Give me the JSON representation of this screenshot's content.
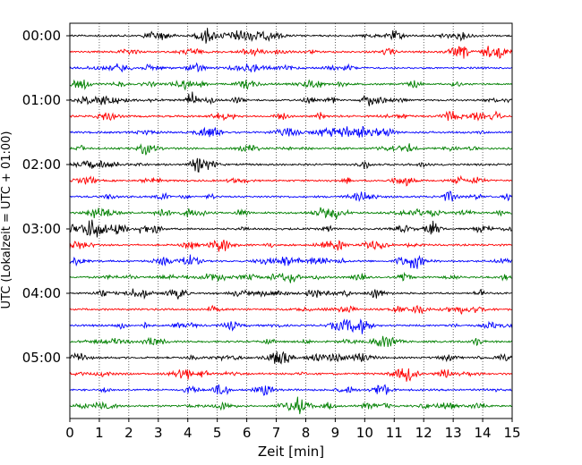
{
  "chart_data": {
    "type": "line",
    "title": "",
    "xlabel": "Zeit  [min]",
    "ylabel": "UTC (Lokalzeit = UTC + 01:00)",
    "xlim": [
      0,
      15
    ],
    "x_ticks": [
      "0",
      "1",
      "2",
      "3",
      "4",
      "5",
      "6",
      "7",
      "8",
      "9",
      "10",
      "11",
      "12",
      "13",
      "14",
      "15"
    ],
    "y_tick_labels": [
      "00:00",
      "01:00",
      "02:00",
      "03:00",
      "04:00",
      "05:00"
    ],
    "row_interval_minutes": 15,
    "trace_count": 24,
    "trace_colors": [
      "#000000",
      "#ff0000",
      "#0000ff",
      "#008000"
    ],
    "grid": "vertical dotted at each minute"
  }
}
